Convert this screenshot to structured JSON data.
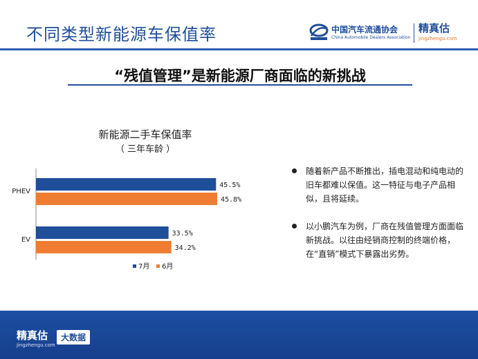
{
  "header": {
    "title": "不同类型新能源车保值率",
    "cada_logo_cn": "中国汽车流通协会",
    "cada_logo_en": "China Automobile Dealers Association",
    "jzg_logo_cn": "精真估",
    "jzg_logo_en": "jingzhengu.com"
  },
  "subtitle": "“残值管理”是新能源厂商面临的新挑战",
  "chart_data": {
    "type": "bar",
    "orientation": "horizontal",
    "title": "新能源二手车保值率",
    "subtitle": "（ 三年车龄 ）",
    "categories": [
      "PHEV",
      "EV"
    ],
    "series": [
      {
        "name": "7月",
        "values": [
          45.5,
          33.5
        ],
        "labels": [
          "45.5%",
          "33.5%"
        ],
        "color": "#1f4e9a"
      },
      {
        "name": "6月",
        "values": [
          45.8,
          34.2
        ],
        "labels": [
          "45.8%",
          "34.2%"
        ],
        "color": "#ee7d31"
      }
    ],
    "unit": "%",
    "xlim": [
      0,
      50
    ],
    "legend": "bottom",
    "grid": false
  },
  "bullets": [
    "随着新产品不断推出，插电混动和纯电动的旧车都难以保值。这一特征与电子产品相似，且将延续。",
    "以小鹏汽车为例，厂商在残值管理方面面临新挑战。以往由经销商控制的终端价格，在“直销”模式下暴露出劣势。"
  ],
  "footer": {
    "logo_cn": "精真估",
    "logo_en": "jingzhengu.com",
    "badge": "大数据"
  }
}
